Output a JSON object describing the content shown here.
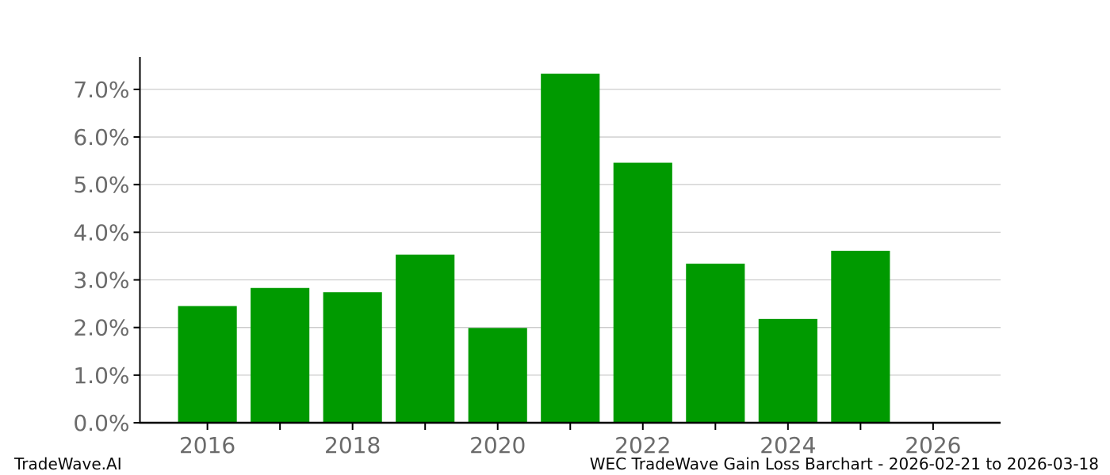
{
  "footer": {
    "brand": "TradeWave.AI",
    "title": "WEC TradeWave Gain Loss Barchart - 2026-02-21 to 2026-03-18"
  },
  "chart_data": {
    "type": "bar",
    "title": "",
    "xlabel": "",
    "ylabel": "",
    "categories": [
      2016,
      2017,
      2018,
      2019,
      2020,
      2021,
      2022,
      2023,
      2024,
      2025
    ],
    "values": [
      2.45,
      2.83,
      2.74,
      3.53,
      1.99,
      7.33,
      5.46,
      3.34,
      2.18,
      3.61
    ],
    "unit": "%",
    "xlim": [
      2015.07,
      2026.93
    ],
    "ylim": [
      0,
      7.68
    ],
    "xticks": [
      2016,
      2017,
      2018,
      2019,
      2020,
      2021,
      2022,
      2023,
      2024,
      2025,
      2026
    ],
    "xtick_labels": [
      "2016",
      "",
      "2018",
      "",
      "2020",
      "",
      "2022",
      "",
      "2024",
      "",
      "2026"
    ],
    "yticks": [
      0,
      1,
      2,
      3,
      4,
      5,
      6,
      7
    ],
    "ytick_labels": [
      "0.0%",
      "1.0%",
      "2.0%",
      "3.0%",
      "4.0%",
      "5.0%",
      "6.0%",
      "7.0%"
    ],
    "grid": "horizontal",
    "legend": "none",
    "bar_width_years": 0.81,
    "colors": {
      "bar": "#009a00",
      "grid": "#cccccc",
      "axis": "#000000",
      "tick_label": "#6b6b6b"
    }
  }
}
